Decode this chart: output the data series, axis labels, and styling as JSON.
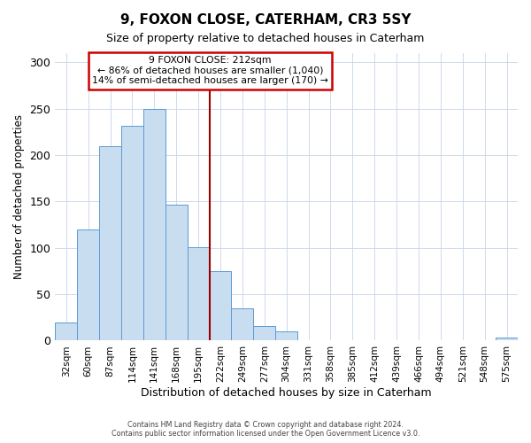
{
  "title": "9, FOXON CLOSE, CATERHAM, CR3 5SY",
  "subtitle": "Size of property relative to detached houses in Caterham",
  "xlabel": "Distribution of detached houses by size in Caterham",
  "ylabel": "Number of detached properties",
  "bar_labels": [
    "32sqm",
    "60sqm",
    "87sqm",
    "114sqm",
    "141sqm",
    "168sqm",
    "195sqm",
    "222sqm",
    "249sqm",
    "277sqm",
    "304sqm",
    "331sqm",
    "358sqm",
    "385sqm",
    "412sqm",
    "439sqm",
    "466sqm",
    "494sqm",
    "521sqm",
    "548sqm",
    "575sqm"
  ],
  "bar_values": [
    20,
    120,
    210,
    232,
    250,
    147,
    101,
    75,
    35,
    16,
    10,
    0,
    0,
    0,
    0,
    0,
    0,
    0,
    0,
    0,
    3
  ],
  "bar_color": "#c9ddf0",
  "bar_edge_color": "#5b9bd5",
  "vline_color": "#9b0000",
  "ylim": [
    0,
    310
  ],
  "yticks": [
    0,
    50,
    100,
    150,
    200,
    250,
    300
  ],
  "annotation_title": "9 FOXON CLOSE: 212sqm",
  "annotation_line1": "← 86% of detached houses are smaller (1,040)",
  "annotation_line2": "14% of semi-detached houses are larger (170) →",
  "annotation_box_color": "#ffffff",
  "annotation_box_edge": "#cc0000",
  "footer1": "Contains HM Land Registry data © Crown copyright and database right 2024.",
  "footer2": "Contains public sector information licensed under the Open Government Licence v3.0."
}
